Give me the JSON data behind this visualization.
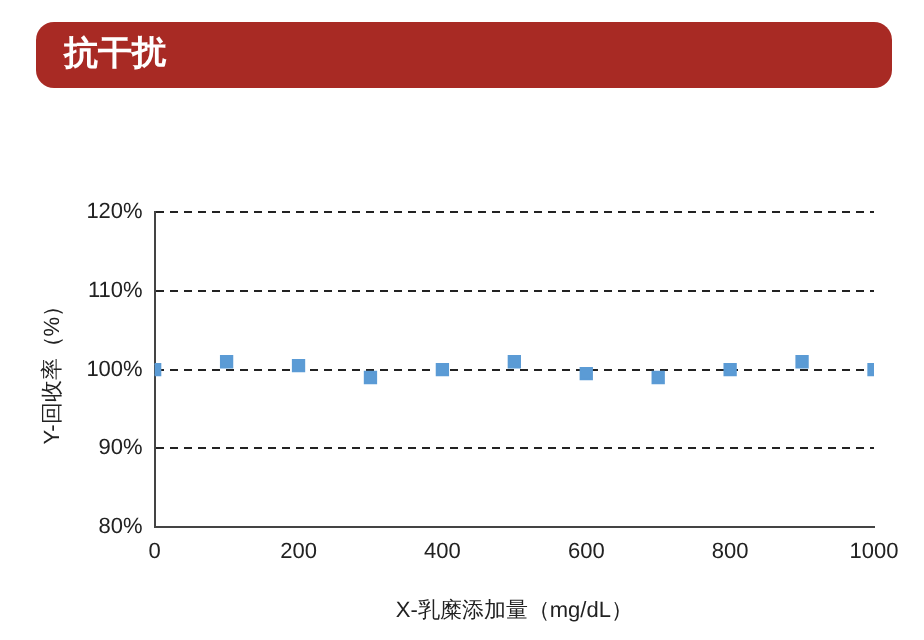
{
  "chart_data": {
    "type": "scatter",
    "title": "抗干扰",
    "xlabel": "X-乳糜添加量（mg/dL）",
    "ylabel": "Y-回收率（%）",
    "x": [
      0,
      100,
      200,
      300,
      400,
      500,
      600,
      700,
      800,
      900,
      1000
    ],
    "series": [
      {
        "color": "#5b9bd5",
        "values": [
          100,
          101,
          100.5,
          99,
          100,
          101,
          99.5,
          99,
          100,
          101,
          100
        ]
      }
    ],
    "xlim": [
      0,
      1000
    ],
    "xticks": [
      0,
      200,
      400,
      600,
      800,
      1000
    ],
    "ylim": [
      80,
      120
    ],
    "yticks": [
      {
        "value": 80,
        "label": "80%"
      },
      {
        "value": 90,
        "label": "90%"
      },
      {
        "value": 100,
        "label": "100%"
      },
      {
        "value": 110,
        "label": "110%"
      },
      {
        "value": 120,
        "label": "120%"
      }
    ],
    "grid": "y",
    "marker": "square",
    "legend": false
  }
}
